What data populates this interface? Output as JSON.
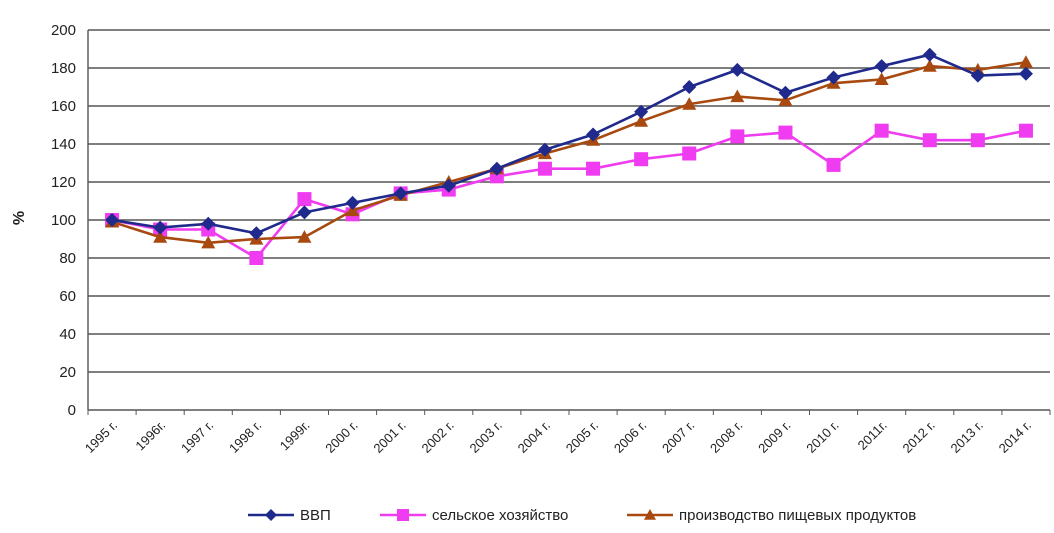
{
  "chart_data": {
    "type": "line",
    "ylabel": "%",
    "ylim": [
      0,
      200
    ],
    "yticks": [
      "0",
      "20",
      "40",
      "60",
      "80",
      "100",
      "120",
      "140",
      "160",
      "180",
      "200"
    ],
    "grid": true,
    "legend_position": "bottom",
    "categories": [
      "1995 г.",
      "1996г.",
      "1997 г.",
      "1998 г.",
      "1999г.",
      "2000 г.",
      "2001 г.",
      "2002 г.",
      "2003 г.",
      "2004 г.",
      "2005 г.",
      "2006 г.",
      "2007 г.",
      "2008 г.",
      "2009 г.",
      "2010 г.",
      "2011г.",
      "2012 г.",
      "2013 г.",
      "2014 г."
    ],
    "series": [
      {
        "name": "ВВП",
        "color": "#1f2a8c",
        "marker": "diamond",
        "values": [
          100,
          96,
          98,
          93,
          104,
          109,
          114,
          118,
          127,
          137,
          145,
          157,
          170,
          179,
          167,
          175,
          181,
          187,
          176,
          177
        ]
      },
      {
        "name": "сельское хозяйство",
        "color": "#f03cf0",
        "marker": "square",
        "values": [
          100,
          95,
          95,
          80,
          111,
          103,
          114,
          116,
          123,
          127,
          127,
          132,
          135,
          144,
          146,
          129,
          147,
          142,
          142,
          147
        ]
      },
      {
        "name": "производство пищевых продуктов",
        "color": "#a84a10",
        "marker": "triangle",
        "values": [
          99,
          91,
          88,
          90,
          91,
          105,
          113,
          120,
          127,
          135,
          142,
          152,
          161,
          165,
          163,
          172,
          174,
          181,
          179,
          183
        ]
      }
    ]
  }
}
